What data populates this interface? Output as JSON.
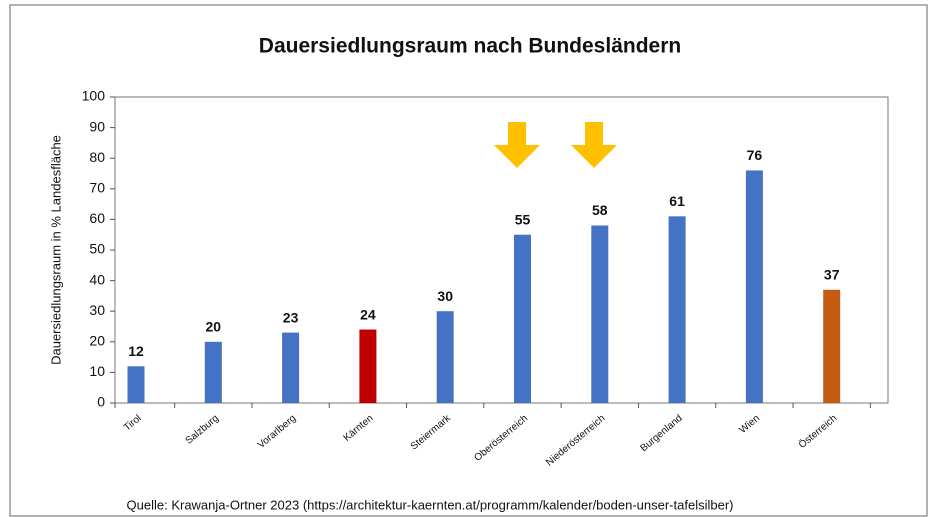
{
  "chart_data": {
    "type": "bar",
    "title": "Dauersiedlungsraum nach Bundesländern",
    "y_label": "Dauersiedlungsraum  in % Landesfläche",
    "categories": [
      "Tirol",
      "Salzburg",
      "Vorarlberg",
      "Kärnten",
      "Steiermark",
      "Oberösterreich",
      "Niederösterreich",
      "Burgenland",
      "Wien",
      "Österreich"
    ],
    "values": [
      12,
      20,
      23,
      24,
      30,
      55,
      58,
      61,
      76,
      37
    ],
    "colors": [
      "#4472c4",
      "#4472c4",
      "#4472c4",
      "#c00000",
      "#4472c4",
      "#4472c4",
      "#4472c4",
      "#4472c4",
      "#4472c4",
      "#c55a11"
    ],
    "ylim": [
      0,
      100
    ],
    "yticks": [
      0,
      10,
      20,
      30,
      40,
      50,
      60,
      70,
      80,
      90,
      100
    ],
    "grid": false,
    "source": "Quelle: Krawanja-Ortner 2023 (https://architektur-kaernten.at/programm/kalender/boden-unser-tafelsilber)"
  }
}
